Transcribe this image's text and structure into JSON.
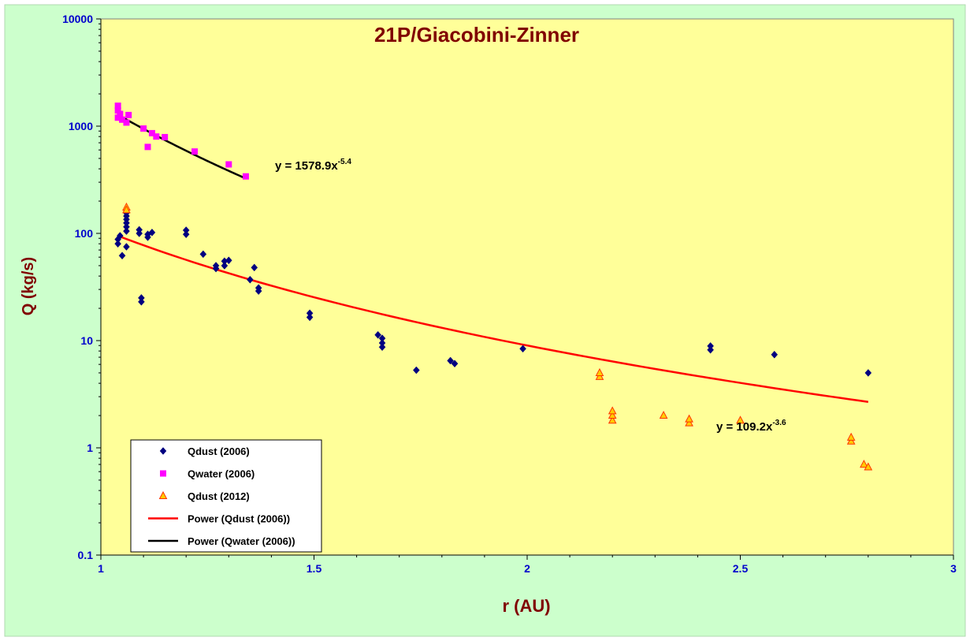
{
  "chart_data": {
    "type": "scatter",
    "title": "21P/Giacobini-Zinner",
    "xlabel": "r (AU)",
    "ylabel": "Q (kg/s)",
    "xlim": [
      1,
      3
    ],
    "ylim": [
      0.1,
      10000
    ],
    "yscale": "log",
    "x_ticks": [
      1,
      1.5,
      2,
      2.5,
      3
    ],
    "x_tick_labels": [
      "1",
      "1.5",
      "2",
      "2.5",
      "3"
    ],
    "y_ticks": [
      0.1,
      1,
      10,
      100,
      1000,
      10000
    ],
    "y_tick_labels": [
      "0.1",
      "1",
      "10",
      "100",
      "1000",
      "10000"
    ],
    "grid": false,
    "legend_position": "bottom-left",
    "colors": {
      "outer_background": "#ccffcc",
      "plot_background": "#ffff99",
      "title": "#800000",
      "axis_title": "#800000",
      "tick_label": "#0000cc",
      "qdust_2006": "#000080",
      "qwater_2006": "#ff00ff",
      "qdust_2012_fill": "#ffcc00",
      "qdust_2012_edge": "#ff3300",
      "power_dust": "#ff0000",
      "power_water": "#000000"
    },
    "series": [
      {
        "name": "Qdust (2006)",
        "marker": "diamond",
        "points": [
          [
            1.04,
            80
          ],
          [
            1.04,
            88
          ],
          [
            1.045,
            95
          ],
          [
            1.05,
            62
          ],
          [
            1.06,
            75
          ],
          [
            1.06,
            105
          ],
          [
            1.06,
            115
          ],
          [
            1.06,
            125
          ],
          [
            1.06,
            135
          ],
          [
            1.06,
            145
          ],
          [
            1.06,
            155
          ],
          [
            1.09,
            100
          ],
          [
            1.09,
            108
          ],
          [
            1.095,
            23
          ],
          [
            1.095,
            25
          ],
          [
            1.11,
            92
          ],
          [
            1.11,
            98
          ],
          [
            1.12,
            102
          ],
          [
            1.2,
            98
          ],
          [
            1.2,
            107
          ],
          [
            1.24,
            64
          ],
          [
            1.27,
            47
          ],
          [
            1.27,
            50
          ],
          [
            1.29,
            50
          ],
          [
            1.29,
            55
          ],
          [
            1.3,
            56
          ],
          [
            1.35,
            37
          ],
          [
            1.36,
            48
          ],
          [
            1.37,
            29
          ],
          [
            1.37,
            31
          ],
          [
            1.49,
            16.5
          ],
          [
            1.49,
            18
          ],
          [
            1.65,
            11.3
          ],
          [
            1.66,
            8.7
          ],
          [
            1.66,
            9.5
          ],
          [
            1.66,
            10.5
          ],
          [
            1.74,
            5.3
          ],
          [
            1.82,
            6.5
          ],
          [
            1.83,
            6.1
          ],
          [
            1.99,
            8.4
          ],
          [
            2.43,
            8.2
          ],
          [
            2.43,
            8.9
          ],
          [
            2.58,
            7.4
          ],
          [
            2.8,
            5
          ]
        ]
      },
      {
        "name": "Qwater (2006)",
        "marker": "square",
        "points": [
          [
            1.04,
            1200
          ],
          [
            1.04,
            1400
          ],
          [
            1.04,
            1550
          ],
          [
            1.045,
            1300
          ],
          [
            1.05,
            1150
          ],
          [
            1.06,
            1080
          ],
          [
            1.065,
            1270
          ],
          [
            1.1,
            950
          ],
          [
            1.11,
            640
          ],
          [
            1.12,
            860
          ],
          [
            1.13,
            800
          ],
          [
            1.15,
            790
          ],
          [
            1.22,
            580
          ],
          [
            1.3,
            440
          ],
          [
            1.34,
            340
          ]
        ]
      },
      {
        "name": "Qdust (2012)",
        "marker": "triangle",
        "points": [
          [
            1.06,
            175
          ],
          [
            1.06,
            165
          ],
          [
            2.17,
            4.6
          ],
          [
            2.17,
            5
          ],
          [
            2.2,
            1.8
          ],
          [
            2.2,
            2
          ],
          [
            2.2,
            2.2
          ],
          [
            2.32,
            2
          ],
          [
            2.38,
            1.7
          ],
          [
            2.38,
            1.85
          ],
          [
            2.5,
            1.8
          ],
          [
            2.76,
            1.15
          ],
          [
            2.76,
            1.25
          ],
          [
            2.79,
            0.7
          ],
          [
            2.8,
            0.66
          ]
        ]
      }
    ],
    "trendlines": [
      {
        "name": "Power (Qdust (2006))",
        "type": "power",
        "coefficient": 109.2,
        "exponent": -3.6,
        "x_range": [
          1.04,
          2.8
        ],
        "equation_label": "y = 109.2x",
        "equation_exponent": "-3.6"
      },
      {
        "name": "Power (Qwater (2006))",
        "type": "power",
        "coefficient": 1578.9,
        "exponent": -5.4,
        "x_range": [
          1.04,
          1.34
        ],
        "equation_label": "y = 1578.9x",
        "equation_exponent": "-5.4"
      }
    ]
  }
}
